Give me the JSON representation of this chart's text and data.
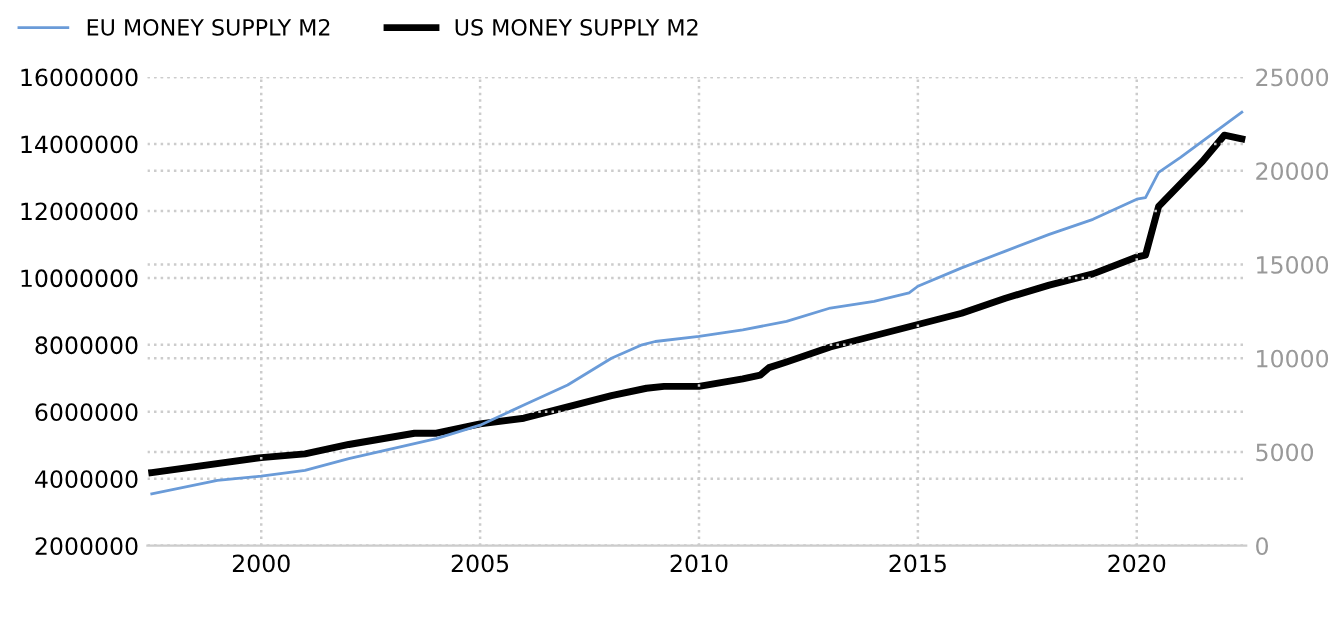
{
  "chart_data": {
    "type": "line",
    "xlim": [
      1997.4,
      2022.5
    ],
    "xticks": [
      2000,
      2005,
      2010,
      2015,
      2020
    ],
    "ylim": [
      2000000,
      16000000
    ],
    "yticks": [
      2000000,
      4000000,
      6000000,
      8000000,
      10000000,
      12000000,
      14000000,
      16000000
    ],
    "y2lim": [
      0,
      25000
    ],
    "y2ticks": [
      0,
      5000,
      10000,
      15000,
      20000,
      25000
    ],
    "grid": true,
    "legend": "top left",
    "series": [
      {
        "name": "EU MONEY SUPPLY M2",
        "color": "#6a9bd8",
        "x": [
          1997.5,
          1999,
          2000,
          2001,
          2002,
          2003,
          2004,
          2005,
          2006,
          2007,
          2008,
          2008.7,
          2009,
          2010,
          2011,
          2012,
          2013,
          2014,
          2014.8,
          2015,
          2016,
          2017,
          2018,
          2019,
          2020,
          2020.2,
          2020.5,
          2021,
          2022.4
        ],
        "values": [
          3550000,
          3950000,
          4080000,
          4250000,
          4600000,
          4900000,
          5200000,
          5600000,
          6200000,
          6800000,
          7600000,
          8000000,
          8100000,
          8250000,
          8450000,
          8700000,
          9100000,
          9300000,
          9550000,
          9750000,
          10300000,
          10800000,
          11300000,
          11750000,
          12350000,
          12400000,
          13150000,
          13600000,
          14950000
        ]
      },
      {
        "name": "US MONEY SUPPLY M2",
        "color": "#000000",
        "axis": "y2",
        "x": [
          1997.5,
          2000,
          2001,
          2002,
          2003.5,
          2004,
          2005,
          2006,
          2007,
          2008,
          2008.8,
          2009.2,
          2010,
          2011,
          2011.4,
          2011.6,
          2012,
          2013,
          2014,
          2015,
          2016,
          2017,
          2018,
          2019,
          2020,
          2020.2,
          2020.5,
          2021,
          2021.5,
          2022,
          2022.4
        ],
        "values": [
          3900,
          4700,
          4900,
          5400,
          6000,
          6000,
          6500,
          6800,
          7400,
          8000,
          8400,
          8500,
          8500,
          8900,
          9100,
          9500,
          9800,
          10600,
          11200,
          11800,
          12400,
          13200,
          13900,
          14500,
          15400,
          15500,
          18100,
          19300,
          20500,
          21900,
          21700
        ]
      }
    ]
  }
}
